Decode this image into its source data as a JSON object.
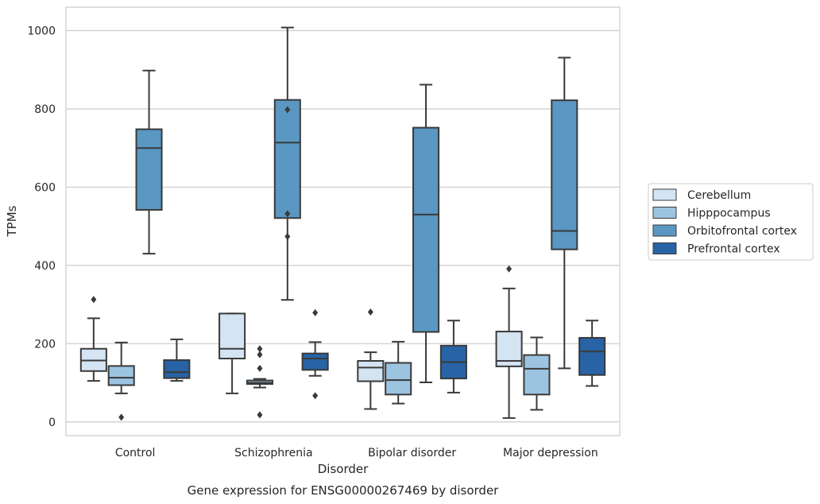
{
  "chart_data": {
    "type": "boxplot",
    "xlabel": "Disorder",
    "ylabel": "TPMs",
    "caption": "Gene expression for ENSG00000267469 by disorder",
    "ylim": [
      -35,
      1060
    ],
    "y_ticks": [
      0,
      200,
      400,
      600,
      800,
      1000
    ],
    "grid": "horizontal",
    "legend_placement": "right",
    "categories": [
      "Control",
      "Schizophrenia",
      "Bipolar disorder",
      "Major depression"
    ],
    "series": [
      {
        "name": "Cerebellum",
        "color": "#d4e4f3",
        "boxes": [
          {
            "whislo": 105,
            "q1": 130,
            "med": 157,
            "q3": 187,
            "whishi": 265,
            "fliers": [
              313
            ]
          },
          {
            "whislo": 73,
            "q1": 162,
            "med": 187,
            "q3": 277,
            "whishi": 277,
            "fliers": []
          },
          {
            "whislo": 33,
            "q1": 104,
            "med": 139,
            "q3": 156,
            "whishi": 178,
            "fliers": [
              281
            ]
          },
          {
            "whislo": 10,
            "q1": 142,
            "med": 156,
            "q3": 231,
            "whishi": 341,
            "fliers": [
              391
            ]
          }
        ]
      },
      {
        "name": "Hipppocampus",
        "color": "#9cc4e1",
        "boxes": [
          {
            "whislo": 73,
            "q1": 94,
            "med": 113,
            "q3": 143,
            "whishi": 203,
            "fliers": [
              12
            ]
          },
          {
            "whislo": 88,
            "q1": 97,
            "med": 100,
            "q3": 106,
            "whishi": 110,
            "fliers": [
              18,
              137,
              172,
              187
            ]
          },
          {
            "whislo": 47,
            "q1": 70,
            "med": 107,
            "q3": 151,
            "whishi": 205,
            "fliers": []
          },
          {
            "whislo": 31,
            "q1": 70,
            "med": 136,
            "q3": 171,
            "whishi": 216,
            "fliers": []
          }
        ]
      },
      {
        "name": "Orbitofrontal cortex",
        "color": "#5a97c2",
        "boxes": [
          {
            "whislo": 430,
            "q1": 542,
            "med": 700,
            "q3": 748,
            "whishi": 898,
            "fliers": []
          },
          {
            "whislo": 312,
            "q1": 521,
            "med": 714,
            "q3": 823,
            "whishi": 1008,
            "fliers": [
              474,
              532,
              798
            ]
          },
          {
            "whislo": 101,
            "q1": 230,
            "med": 530,
            "q3": 752,
            "whishi": 862,
            "fliers": []
          },
          {
            "whislo": 137,
            "q1": 441,
            "med": 488,
            "q3": 822,
            "whishi": 931,
            "fliers": []
          }
        ]
      },
      {
        "name": "Prefrontal cortex",
        "color": "#2763a5",
        "boxes": [
          {
            "whislo": 105,
            "q1": 112,
            "med": 127,
            "q3": 158,
            "whishi": 211,
            "fliers": []
          },
          {
            "whislo": 118,
            "q1": 133,
            "med": 162,
            "q3": 175,
            "whishi": 204,
            "fliers": [
              67,
              279
            ]
          },
          {
            "whislo": 75,
            "q1": 111,
            "med": 153,
            "q3": 195,
            "whishi": 259,
            "fliers": []
          },
          {
            "whislo": 92,
            "q1": 120,
            "med": 180,
            "q3": 215,
            "whishi": 259,
            "fliers": []
          }
        ]
      }
    ]
  }
}
